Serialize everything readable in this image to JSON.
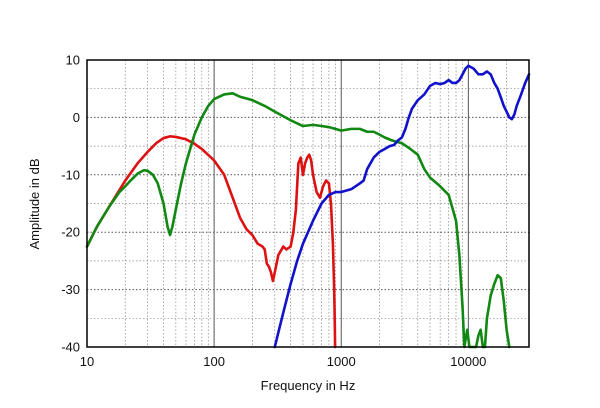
{
  "chart_data": {
    "type": "line",
    "xlabel": "Frequency  in  Hz",
    "ylabel": "Amplitude in dB",
    "x_scale": "log",
    "xlim": [
      10,
      30000
    ],
    "ylim": [
      -40,
      10
    ],
    "x_tick_labels": [
      {
        "value": 10,
        "label": "10"
      },
      {
        "value": 100,
        "label": "100"
      },
      {
        "value": 1000,
        "label": "1000"
      },
      {
        "value": 10000,
        "label": "10000"
      }
    ],
    "y_tick_labels": [
      {
        "value": 10,
        "label": "10"
      },
      {
        "value": 0,
        "label": "0"
      },
      {
        "value": -10,
        "label": "-10"
      },
      {
        "value": -20,
        "label": "-20"
      },
      {
        "value": -30,
        "label": "-30"
      },
      {
        "value": -40,
        "label": "-40"
      }
    ],
    "grid": true,
    "series": [
      {
        "color": "#dd1111",
        "points": [
          [
            10,
            -22.5
          ],
          [
            12,
            -19
          ],
          [
            15,
            -15.5
          ],
          [
            20,
            -11
          ],
          [
            25,
            -8
          ],
          [
            30,
            -6
          ],
          [
            35,
            -4.5
          ],
          [
            40,
            -3.6
          ],
          [
            45,
            -3.3
          ],
          [
            50,
            -3.4
          ],
          [
            60,
            -3.8
          ],
          [
            70,
            -4.6
          ],
          [
            80,
            -5.5
          ],
          [
            100,
            -7.5
          ],
          [
            120,
            -10
          ],
          [
            140,
            -14
          ],
          [
            160,
            -17.5
          ],
          [
            180,
            -19.5
          ],
          [
            200,
            -20.5
          ],
          [
            220,
            -22
          ],
          [
            240,
            -22.5
          ],
          [
            250,
            -23
          ],
          [
            260,
            -25.5
          ],
          [
            270,
            -26
          ],
          [
            280,
            -27
          ],
          [
            290,
            -28.5
          ],
          [
            300,
            -27
          ],
          [
            320,
            -24
          ],
          [
            350,
            -22.5
          ],
          [
            370,
            -23
          ],
          [
            400,
            -22.5
          ],
          [
            420,
            -20
          ],
          [
            440,
            -16
          ],
          [
            460,
            -8
          ],
          [
            480,
            -7
          ],
          [
            500,
            -10
          ],
          [
            520,
            -8
          ],
          [
            540,
            -7
          ],
          [
            560,
            -6.5
          ],
          [
            580,
            -7.5
          ],
          [
            600,
            -10
          ],
          [
            640,
            -13
          ],
          [
            680,
            -14
          ],
          [
            720,
            -12
          ],
          [
            760,
            -11
          ],
          [
            800,
            -11.5
          ],
          [
            830,
            -15
          ],
          [
            860,
            -22
          ],
          [
            880,
            -30
          ],
          [
            890,
            -36
          ],
          [
            895,
            -40
          ]
        ]
      },
      {
        "color": "#118811",
        "points": [
          [
            10,
            -22.5
          ],
          [
            12,
            -19
          ],
          [
            15,
            -15.5
          ],
          [
            18,
            -13
          ],
          [
            20,
            -12
          ],
          [
            22,
            -11
          ],
          [
            25,
            -9.8
          ],
          [
            28,
            -9.2
          ],
          [
            30,
            -9.3
          ],
          [
            33,
            -10
          ],
          [
            36,
            -11.5
          ],
          [
            40,
            -15
          ],
          [
            43,
            -19
          ],
          [
            45,
            -20.5
          ],
          [
            47,
            -19
          ],
          [
            50,
            -16
          ],
          [
            55,
            -11.5
          ],
          [
            60,
            -8
          ],
          [
            70,
            -3
          ],
          [
            80,
            0
          ],
          [
            90,
            2
          ],
          [
            100,
            3.2
          ],
          [
            120,
            4
          ],
          [
            140,
            4.2
          ],
          [
            160,
            3.6
          ],
          [
            200,
            3
          ],
          [
            250,
            2
          ],
          [
            300,
            1
          ],
          [
            400,
            -0.5
          ],
          [
            500,
            -1.5
          ],
          [
            600,
            -1.3
          ],
          [
            700,
            -1.5
          ],
          [
            800,
            -1.7
          ],
          [
            900,
            -2
          ],
          [
            1000,
            -2.3
          ],
          [
            1200,
            -2
          ],
          [
            1400,
            -2
          ],
          [
            1600,
            -2.5
          ],
          [
            1800,
            -2.5
          ],
          [
            2000,
            -3
          ],
          [
            2200,
            -3.5
          ],
          [
            2500,
            -4
          ],
          [
            3000,
            -4.5
          ],
          [
            3500,
            -5.5
          ],
          [
            4000,
            -6.5
          ],
          [
            4500,
            -9
          ],
          [
            5000,
            -10.5
          ],
          [
            6000,
            -12
          ],
          [
            7000,
            -13.5
          ],
          [
            8000,
            -18
          ],
          [
            8500,
            -24
          ],
          [
            9000,
            -33
          ],
          [
            9300,
            -40
          ],
          [
            9800,
            -37
          ],
          [
            10200,
            -40
          ],
          [
            11500,
            -40
          ],
          [
            12000,
            -38
          ],
          [
            12500,
            -37
          ],
          [
            13000,
            -40
          ],
          [
            13500,
            -40
          ],
          [
            14000,
            -35
          ],
          [
            14500,
            -33
          ],
          [
            15000,
            -31
          ],
          [
            16000,
            -29
          ],
          [
            17000,
            -27.5
          ],
          [
            18000,
            -28
          ],
          [
            19000,
            -32
          ],
          [
            20000,
            -37
          ],
          [
            21000,
            -40
          ]
        ]
      },
      {
        "color": "#1111cc",
        "points": [
          [
            300,
            -40
          ],
          [
            350,
            -34
          ],
          [
            400,
            -29
          ],
          [
            450,
            -25
          ],
          [
            500,
            -22
          ],
          [
            600,
            -18
          ],
          [
            700,
            -15
          ],
          [
            800,
            -13.5
          ],
          [
            900,
            -13
          ],
          [
            1000,
            -13
          ],
          [
            1200,
            -12.5
          ],
          [
            1400,
            -11.5
          ],
          [
            1500,
            -11
          ],
          [
            1600,
            -9
          ],
          [
            1800,
            -7
          ],
          [
            2000,
            -6
          ],
          [
            2200,
            -5.5
          ],
          [
            2400,
            -5
          ],
          [
            2600,
            -4.8
          ],
          [
            2800,
            -4
          ],
          [
            3000,
            -3.5
          ],
          [
            3200,
            -2
          ],
          [
            3400,
            0
          ],
          [
            3600,
            1.5
          ],
          [
            4000,
            3
          ],
          [
            4500,
            4
          ],
          [
            5000,
            5.5
          ],
          [
            5500,
            6
          ],
          [
            6000,
            5.8
          ],
          [
            6500,
            6
          ],
          [
            7000,
            6.5
          ],
          [
            7500,
            6
          ],
          [
            8000,
            6
          ],
          [
            8500,
            6.5
          ],
          [
            9000,
            7.5
          ],
          [
            9500,
            8.5
          ],
          [
            10000,
            9
          ],
          [
            11000,
            8.5
          ],
          [
            12000,
            7.5
          ],
          [
            13000,
            7.5
          ],
          [
            14000,
            8
          ],
          [
            15000,
            7.5
          ],
          [
            16000,
            6
          ],
          [
            17000,
            5
          ],
          [
            18000,
            3.5
          ],
          [
            19000,
            2
          ],
          [
            20000,
            1
          ],
          [
            21000,
            0
          ],
          [
            22000,
            -0.3
          ],
          [
            23000,
            0.5
          ],
          [
            24000,
            2
          ],
          [
            26000,
            4
          ],
          [
            28000,
            6
          ],
          [
            30000,
            7.5
          ]
        ]
      }
    ]
  }
}
